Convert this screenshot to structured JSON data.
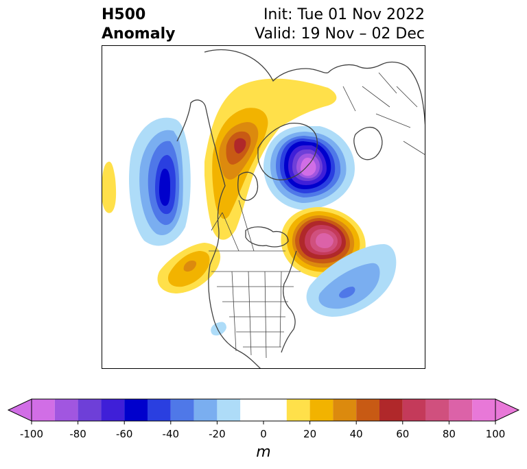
{
  "title": {
    "left_line1": "H500",
    "left_line2": "Anomaly",
    "right_line1": "Init: Tue 01 Nov 2022",
    "right_line2": "Valid: 19 Nov – 02 Dec"
  },
  "colorbar": {
    "unit": "m",
    "ticks": [
      "-100",
      "-80",
      "-60",
      "-40",
      "-20",
      "0",
      "20",
      "40",
      "60",
      "80",
      "100"
    ],
    "levels": [
      -100,
      -90,
      -80,
      -70,
      -60,
      -50,
      -40,
      -30,
      -20,
      -10,
      10,
      20,
      30,
      40,
      50,
      60,
      70,
      80,
      90,
      100
    ],
    "colors": [
      "#d16ee6",
      "#a156e0",
      "#6e3fd8",
      "#3f1fd8",
      "#0000cc",
      "#2a3fe0",
      "#4f78e8",
      "#7aaef0",
      "#aedcf8",
      "#ffffff",
      "#ffe04a",
      "#f2b300",
      "#dc8a0e",
      "#c85a14",
      "#b0282a",
      "#c43a5a",
      "#d0507e",
      "#dc62a8",
      "#e878d8"
    ],
    "extend": "both"
  },
  "map": {
    "projection": "polar-stereographic-north",
    "features": [
      "coastlines",
      "country-borders",
      "us-state-borders"
    ],
    "anomalies": [
      {
        "name": "gulf-of-alaska-trough",
        "sign": "negative",
        "peak_m": -65
      },
      {
        "name": "arctic-siberia-trough",
        "sign": "negative",
        "peak_m": -95
      },
      {
        "name": "north-atlantic-ridge",
        "sign": "positive",
        "peak_m": 85
      },
      {
        "name": "polar-ridge",
        "sign": "positive",
        "peak_m": 50
      },
      {
        "name": "western-north-america-ridge",
        "sign": "positive",
        "peak_m": 35
      },
      {
        "name": "western-atlantic-trough",
        "sign": "negative",
        "peak_m": -45
      },
      {
        "name": "pacific-ridge",
        "sign": "positive",
        "peak_m": 15
      }
    ]
  }
}
